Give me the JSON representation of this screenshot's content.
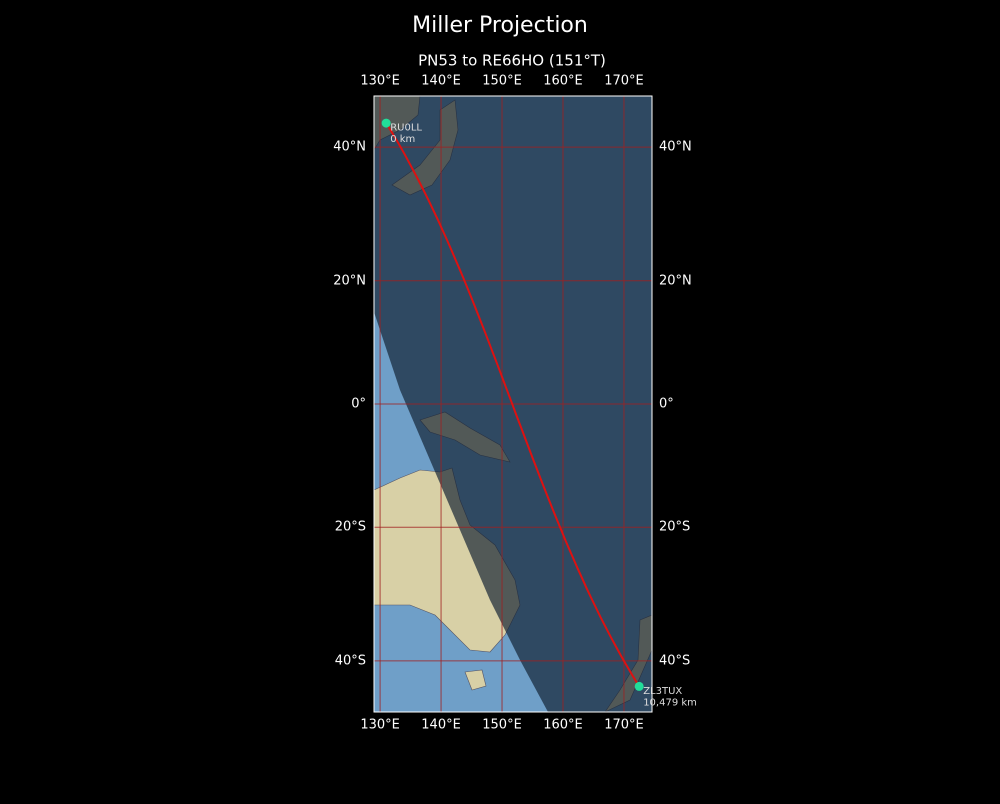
{
  "title": "Miller Projection",
  "subtitle": "PN53 to RE66HO (151°T)",
  "lonlim": [
    129,
    174.6
  ],
  "latlim": [
    -46.9,
    46.9
  ],
  "lonticks": [
    {
      "value": 130,
      "label": "130°E"
    },
    {
      "value": 140,
      "label": "140°E"
    },
    {
      "value": 150,
      "label": "150°E"
    },
    {
      "value": 160,
      "label": "160°E"
    },
    {
      "value": 170,
      "label": "170°E"
    }
  ],
  "latticks": [
    {
      "value": 40,
      "label": "40°N"
    },
    {
      "value": 20,
      "label": "20°N"
    },
    {
      "value": 0,
      "label": "0°"
    },
    {
      "value": -20,
      "label": "20°S"
    },
    {
      "value": -40,
      "label": "40°S"
    }
  ],
  "path_color": "#dd1111",
  "station_color": "#22dd99",
  "stations": [
    {
      "name": "RU0LL",
      "distance": "0 km",
      "lat": 43.3,
      "lon": 131.0
    },
    {
      "name": "ZL3TUX",
      "distance": "10,479 km",
      "lat": -43.5,
      "lon": 172.5
    }
  ]
}
